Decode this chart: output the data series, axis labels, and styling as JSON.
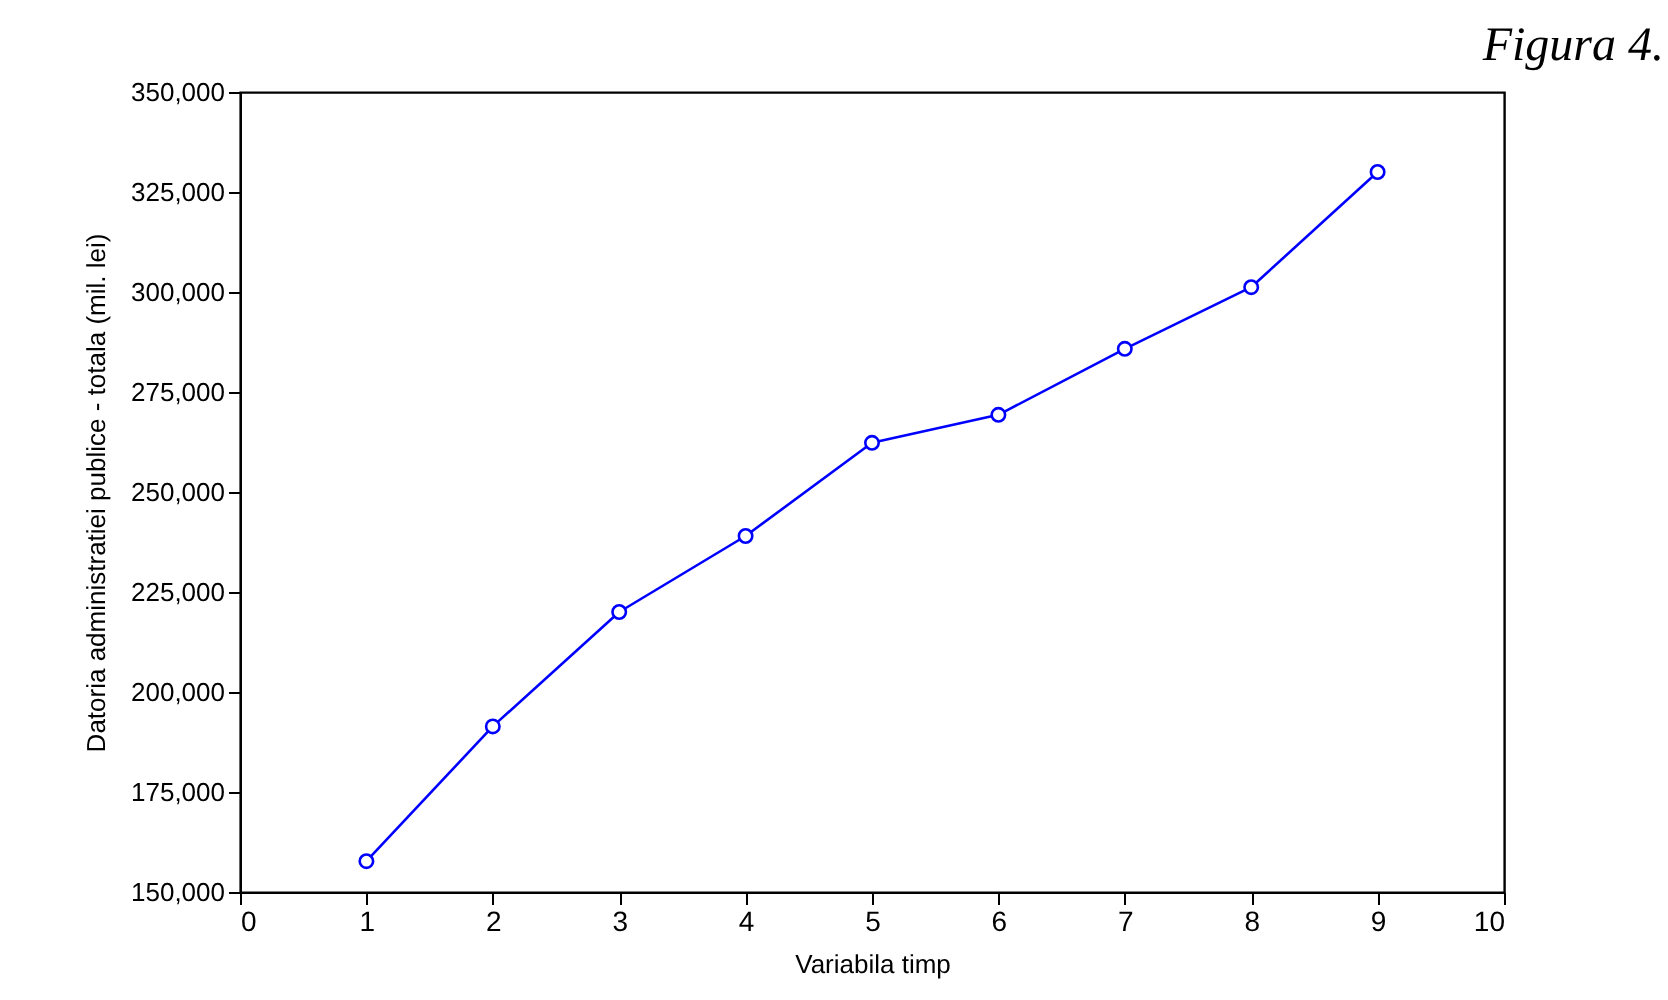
{
  "chart_data": {
    "type": "line",
    "xlabel": "Variabila timp",
    "ylabel": "Datoria administratiei publice - totala (mil. lei)",
    "annotations": [
      "Figura 4."
    ],
    "x": [
      1,
      2,
      3,
      4,
      5,
      6,
      7,
      8,
      9
    ],
    "series": [
      {
        "color": "#0000ff",
        "values": [
          157700,
          191400,
          220000,
          239000,
          262300,
          269300,
          285800,
          301200,
          330000
        ]
      }
    ],
    "xlim": [
      0,
      10
    ],
    "xticks": [
      0,
      1,
      2,
      3,
      4,
      5,
      6,
      7,
      8,
      9,
      10
    ],
    "ylim": [
      150000,
      350000
    ],
    "yticks": [
      {
        "value": 150000,
        "label": "150,000"
      },
      {
        "value": 175000,
        "label": "175,000"
      },
      {
        "value": 200000,
        "label": "200,000"
      },
      {
        "value": 225000,
        "label": "225,000"
      },
      {
        "value": 250000,
        "label": "250,000"
      },
      {
        "value": 275000,
        "label": "275,000"
      },
      {
        "value": 300000,
        "label": "300,000"
      },
      {
        "value": 325000,
        "label": "325,000"
      },
      {
        "value": 350000,
        "label": "350,000"
      }
    ],
    "marker": "circle",
    "line_style": "solid"
  }
}
